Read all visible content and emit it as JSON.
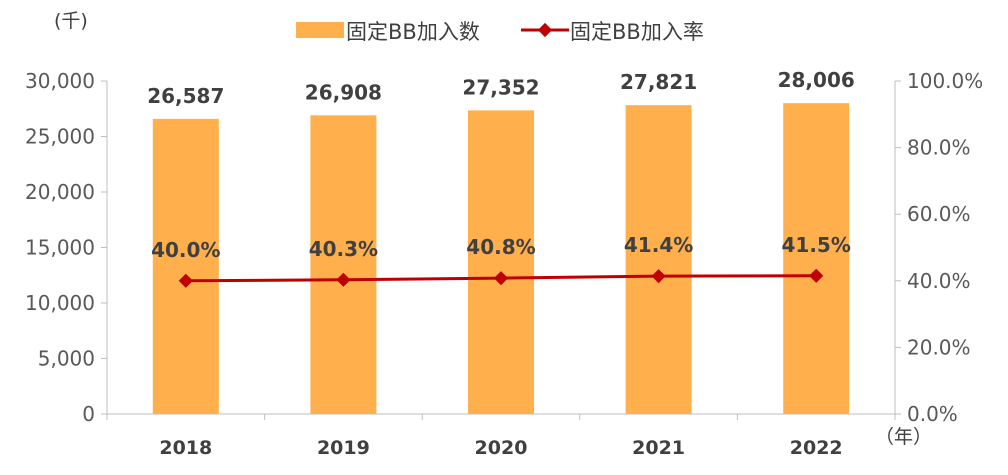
{
  "chart_data": {
    "type": "bar",
    "categories": [
      "2018",
      "2019",
      "2020",
      "2021",
      "2022"
    ],
    "series": [
      {
        "name": "固定BB加入数",
        "type": "bar",
        "axis": "left",
        "color": "#ffb04d",
        "values": [
          26587,
          26908,
          27352,
          27821,
          28006
        ],
        "labels": [
          "26,587",
          "26,908",
          "27,352",
          "27,821",
          "28,006"
        ]
      },
      {
        "name": "固定BB加入率",
        "type": "line",
        "axis": "right",
        "color": "#c00000",
        "values": [
          40.0,
          40.3,
          40.8,
          41.4,
          41.5
        ],
        "labels": [
          "40.0%",
          "40.3%",
          "40.8%",
          "41.4%",
          "41.5%"
        ]
      }
    ],
    "y_left": {
      "unit": "(千)",
      "min": 0,
      "max": 30000,
      "ticks": [
        0,
        5000,
        10000,
        15000,
        20000,
        25000,
        30000
      ],
      "tick_labels": [
        "0",
        "5,000",
        "10,000",
        "15,000",
        "20,000",
        "25,000",
        "30,000"
      ]
    },
    "y_right": {
      "min": 0,
      "max": 100,
      "ticks": [
        0,
        20,
        40,
        60,
        80,
        100
      ],
      "tick_labels": [
        "0.0%",
        "20.0%",
        "40.0%",
        "60.0%",
        "80.0%",
        "100.0%"
      ]
    },
    "x_unit": "（年）",
    "legend_position": "top-center",
    "grid": false
  }
}
